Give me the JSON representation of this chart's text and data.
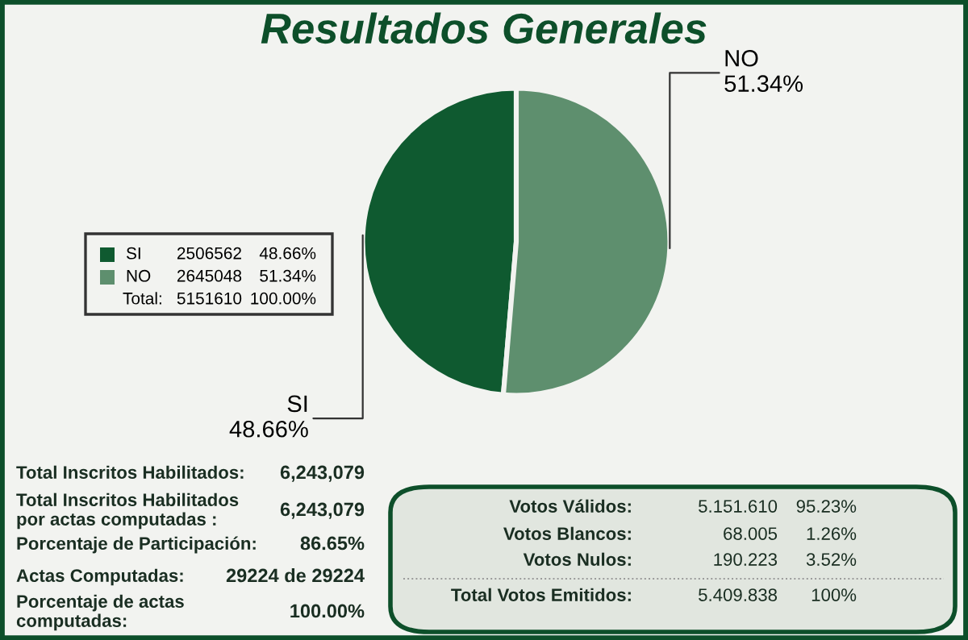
{
  "chart_data": {
    "type": "pie",
    "title": "Resultados Generales",
    "categories": [
      "SI",
      "NO"
    ],
    "values": [
      48.66,
      51.34
    ],
    "value_labels": [
      "48.66%",
      "51.34%"
    ],
    "colors": [
      "#0f5a30",
      "#5e8f6e"
    ],
    "legend": "left",
    "annotations": [
      "2506562",
      "2645048",
      "Total:",
      "5151610",
      "100.00%",
      "Total Inscritos Habilitados:",
      "6,243,079",
      "Total Inscritos Habilitados\npor actas computadas :",
      "6,243,079",
      "Porcentaje de Participación:",
      "86.65%",
      "Actas Computadas:",
      "29224 de 29224",
      "Porcentaje de actas\ncomputadas:",
      "100.00%",
      "Votos Válidos:",
      "5.151.610",
      "95.23%",
      "Votos Blancos:",
      "68.005",
      "1.26%",
      "Votos Nulos:",
      "190.223",
      "3.52%",
      "Total Votos Emitidos:",
      "5.409.838",
      "100%"
    ]
  }
}
